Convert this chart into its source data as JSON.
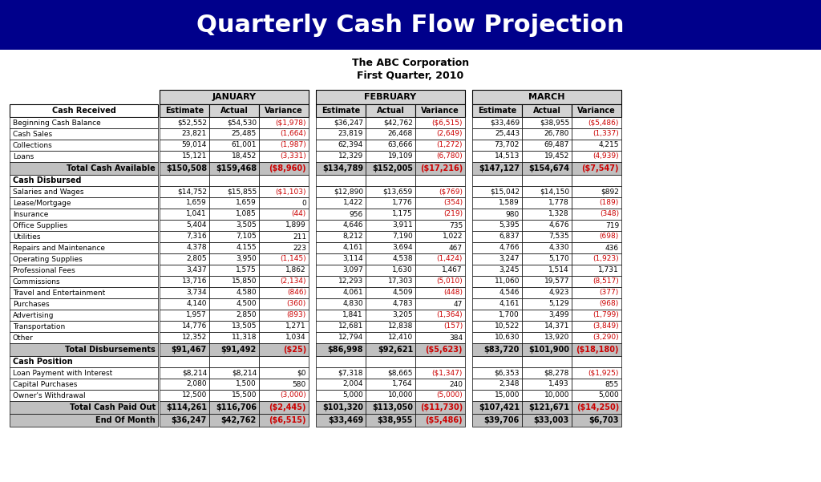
{
  "title": "Quarterly Cash Flow Projection",
  "subtitle1": "The ABC Corporation",
  "subtitle2": "First Quarter, 2010",
  "title_bg": "#00008B",
  "title_color": "#FFFFFF",
  "months": [
    "JANUARY",
    "FEBRUARY",
    "MARCH"
  ],
  "col_headers": [
    "Estimate",
    "Actual",
    "Variance"
  ],
  "sections": {
    "Cash Received": {
      "rows": [
        [
          "Beginning Cash Balance",
          "$52,552",
          "$54,530",
          "($1,978)",
          "$36,247",
          "$42,762",
          "($6,515)",
          "$33,469",
          "$38,955",
          "($5,486)"
        ],
        [
          "Cash Sales",
          "23,821",
          "25,485",
          "(1,664)",
          "23,819",
          "26,468",
          "(2,649)",
          "25,443",
          "26,780",
          "(1,337)"
        ],
        [
          "Collections",
          "59,014",
          "61,001",
          "(1,987)",
          "62,394",
          "63,666",
          "(1,272)",
          "73,702",
          "69,487",
          "4,215"
        ],
        [
          "Loans",
          "15,121",
          "18,452",
          "(3,331)",
          "12,329",
          "19,109",
          "(6,780)",
          "14,513",
          "19,452",
          "(4,939)"
        ]
      ],
      "total_row": [
        "Total Cash Available",
        "$150,508",
        "$159,468",
        "($8,960)",
        "$134,789",
        "$152,005",
        "($17,216)",
        "$147,127",
        "$154,674",
        "($7,547)"
      ]
    },
    "Cash Disbursed": {
      "rows": [
        [
          "Salaries and Wages",
          "$14,752",
          "$15,855",
          "($1,103)",
          "$12,890",
          "$13,659",
          "($769)",
          "$15,042",
          "$14,150",
          "$892"
        ],
        [
          "Lease/Mortgage",
          "1,659",
          "1,659",
          "0",
          "1,422",
          "1,776",
          "(354)",
          "1,589",
          "1,778",
          "(189)"
        ],
        [
          "Insurance",
          "1,041",
          "1,085",
          "(44)",
          "956",
          "1,175",
          "(219)",
          "980",
          "1,328",
          "(348)"
        ],
        [
          "Office Supplies",
          "5,404",
          "3,505",
          "1,899",
          "4,646",
          "3,911",
          "735",
          "5,395",
          "4,676",
          "719"
        ],
        [
          "Utilities",
          "7,316",
          "7,105",
          "211",
          "8,212",
          "7,190",
          "1,022",
          "6,837",
          "7,535",
          "(698)"
        ],
        [
          "Repairs and Maintenance",
          "4,378",
          "4,155",
          "223",
          "4,161",
          "3,694",
          "467",
          "4,766",
          "4,330",
          "436"
        ],
        [
          "Operating Supplies",
          "2,805",
          "3,950",
          "(1,145)",
          "3,114",
          "4,538",
          "(1,424)",
          "3,247",
          "5,170",
          "(1,923)"
        ],
        [
          "Professional Fees",
          "3,437",
          "1,575",
          "1,862",
          "3,097",
          "1,630",
          "1,467",
          "3,245",
          "1,514",
          "1,731"
        ],
        [
          "Commissions",
          "13,716",
          "15,850",
          "(2,134)",
          "12,293",
          "17,303",
          "(5,010)",
          "11,060",
          "19,577",
          "(8,517)"
        ],
        [
          "Travel and Entertainment",
          "3,734",
          "4,580",
          "(846)",
          "4,061",
          "4,509",
          "(448)",
          "4,546",
          "4,923",
          "(377)"
        ],
        [
          "Purchases",
          "4,140",
          "4,500",
          "(360)",
          "4,830",
          "4,783",
          "47",
          "4,161",
          "5,129",
          "(968)"
        ],
        [
          "Advertising",
          "1,957",
          "2,850",
          "(893)",
          "1,841",
          "3,205",
          "(1,364)",
          "1,700",
          "3,499",
          "(1,799)"
        ],
        [
          "Transportation",
          "14,776",
          "13,505",
          "1,271",
          "12,681",
          "12,838",
          "(157)",
          "10,522",
          "14,371",
          "(3,849)"
        ],
        [
          "Other",
          "12,352",
          "11,318",
          "1,034",
          "12,794",
          "12,410",
          "384",
          "10,630",
          "13,920",
          "(3,290)"
        ]
      ],
      "total_row": [
        "Total Disbursements",
        "$91,467",
        "$91,492",
        "($25)",
        "$86,998",
        "$92,621",
        "($5,623)",
        "$83,720",
        "$101,900",
        "($18,180)"
      ]
    },
    "Cash Position": {
      "rows": [
        [
          "Loan Payment with Interest",
          "$8,214",
          "$8,214",
          "$0",
          "$7,318",
          "$8,665",
          "($1,347)",
          "$6,353",
          "$8,278",
          "($1,925)"
        ],
        [
          "Capital Purchases",
          "2,080",
          "1,500",
          "580",
          "2,004",
          "1,764",
          "240",
          "2,348",
          "1,493",
          "855"
        ],
        [
          "Owner's Withdrawal",
          "12,500",
          "15,500",
          "(3,000)",
          "5,000",
          "10,000",
          "(5,000)",
          "15,000",
          "10,000",
          "5,000"
        ]
      ],
      "total_row1": [
        "Total Cash Paid Out",
        "$114,261",
        "$116,706",
        "($2,445)",
        "$101,320",
        "$113,050",
        "($11,730)",
        "$107,421",
        "$121,671",
        "($14,250)"
      ],
      "total_row2": [
        "End Of Month",
        "$36,247",
        "$42,762",
        "($6,515)",
        "$33,469",
        "$38,955",
        "($5,486)",
        "$39,706",
        "$33,003",
        "$6,703"
      ]
    }
  },
  "neg_color": "#CC0000",
  "pos_color": "#000000",
  "header_bg": "#D3D3D3",
  "total_bg": "#C0C0C0",
  "border_color": "#000000",
  "white_bg": "#FFFFFF"
}
